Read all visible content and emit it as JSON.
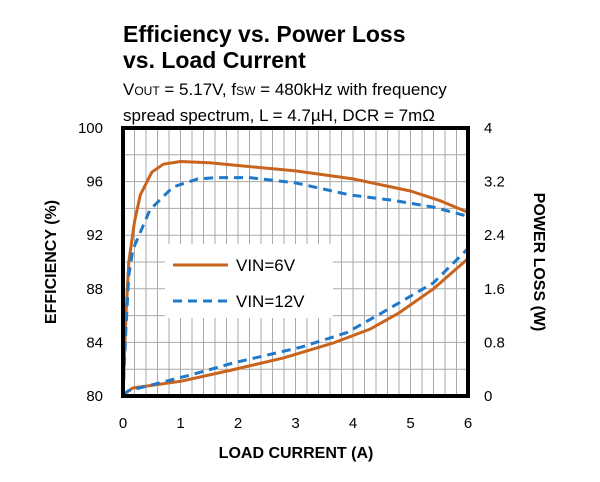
{
  "chart_data": {
    "type": "line",
    "title": [
      "Efficiency vs. Power Loss",
      "vs. Load Current"
    ],
    "subtitle": [
      "V_OUT = 5.17V, f_SW = 480kHz with frequency",
      "spread spectrum, L = 4.7µH, DCR = 7mΩ"
    ],
    "xlabel": "LOAD CURRENT  (A)",
    "ylabel": "EFFICIENCY  (%)",
    "y2label": "POWER LOSS (W)",
    "xlim": [
      0,
      6
    ],
    "ylim": [
      80,
      100
    ],
    "y2lim": [
      0,
      4
    ],
    "xticks": [
      "0",
      "1",
      "2",
      "3",
      "4",
      "5",
      "6"
    ],
    "yticks": [
      "80",
      "84",
      "88",
      "92",
      "96",
      "100"
    ],
    "y2ticks": [
      "0",
      "0.8",
      "1.6",
      "2.4",
      "3.2",
      "4"
    ],
    "grid": true,
    "legend_position": "center-left",
    "series": [
      {
        "name": "VIN=6V",
        "axis": "left",
        "color": "#c8641e",
        "style": "solid",
        "x": [
          0,
          0.05,
          0.1,
          0.2,
          0.3,
          0.5,
          0.7,
          1.0,
          1.5,
          2,
          3,
          4,
          5,
          5.5,
          6
        ],
        "y": [
          80,
          86,
          90,
          93,
          95,
          96.7,
          97.3,
          97.5,
          97.4,
          97.2,
          96.8,
          96.2,
          95.3,
          94.6,
          93.7
        ]
      },
      {
        "name": "VIN=12V",
        "axis": "left",
        "color": "#1f78c8",
        "style": "dashed",
        "x": [
          0,
          0.05,
          0.1,
          0.17,
          0.47,
          0.87,
          1.3,
          1.63,
          2.2,
          3,
          3.95,
          4.7,
          5.4,
          6
        ],
        "y": [
          80,
          85,
          89,
          90.9,
          93.9,
          95.6,
          96.2,
          96.3,
          96.3,
          95.9,
          95.0,
          94.6,
          94.1,
          93.4
        ]
      },
      {
        "name": "VIN=6V",
        "axis": "right",
        "color": "#c8641e",
        "style": "solid",
        "x": [
          0,
          0.17,
          1,
          1.9,
          2.8,
          3.65,
          4.3,
          4.8,
          5.4,
          6
        ],
        "y": [
          0.02,
          0.12,
          0.22,
          0.39,
          0.57,
          0.79,
          1.0,
          1.24,
          1.6,
          2.05
        ]
      },
      {
        "name": "VIN=12V",
        "axis": "right",
        "color": "#1f78c8",
        "style": "dashed",
        "x": [
          0,
          0.1,
          0.47,
          1.2,
          1.9,
          3.1,
          3.9,
          4.5,
          5.4,
          6
        ],
        "y": [
          0.02,
          0.08,
          0.16,
          0.32,
          0.49,
          0.73,
          0.95,
          1.24,
          1.69,
          2.2
        ]
      }
    ]
  }
}
